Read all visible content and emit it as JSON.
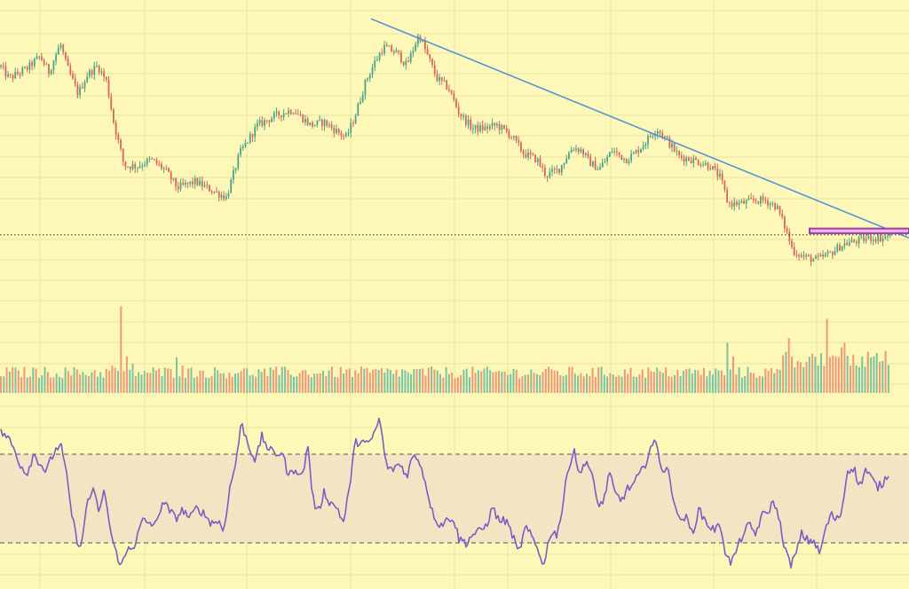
{
  "theme": {
    "background": "#fdf7b8",
    "grid": "#ece5a3",
    "up": "#4aa38a",
    "down": "#d7675a",
    "volume_up": "#7cc3a4",
    "volume_down": "#ee9a7a",
    "trendline": "#4c8fde",
    "rsi_line": "#7d5bc4",
    "rsi_band": "#f2e5c3",
    "zone_border": "#a23ea0",
    "zone_fill": "#e6b7ea"
  },
  "chart_data": [
    {
      "type": "candlestick",
      "title": "",
      "price_path": [
        [
          0,
          104
        ],
        [
          10,
          100
        ],
        [
          30,
          103
        ],
        [
          45,
          107
        ],
        [
          55,
          102
        ],
        [
          68,
          111
        ],
        [
          75,
          104
        ],
        [
          88,
          95
        ],
        [
          98,
          101
        ],
        [
          110,
          104
        ],
        [
          120,
          99
        ],
        [
          128,
          86
        ],
        [
          140,
          72
        ],
        [
          155,
          72
        ],
        [
          170,
          74
        ],
        [
          185,
          71
        ],
        [
          200,
          65
        ],
        [
          220,
          67
        ],
        [
          240,
          64
        ],
        [
          255,
          62
        ],
        [
          270,
          76
        ],
        [
          290,
          85
        ],
        [
          310,
          88
        ],
        [
          330,
          90
        ],
        [
          350,
          85
        ],
        [
          365,
          86
        ],
        [
          380,
          83
        ],
        [
          390,
          81
        ],
        [
          400,
          88
        ],
        [
          412,
          99
        ],
        [
          422,
          105
        ],
        [
          432,
          110
        ],
        [
          448,
          108
        ],
        [
          458,
          104
        ],
        [
          472,
          114
        ],
        [
          482,
          107
        ],
        [
          492,
          100
        ],
        [
          505,
          97
        ],
        [
          517,
          89
        ],
        [
          532,
          84
        ],
        [
          545,
          84
        ],
        [
          560,
          85
        ],
        [
          575,
          82
        ],
        [
          590,
          76
        ],
        [
          605,
          74
        ],
        [
          615,
          69
        ],
        [
          630,
          71
        ],
        [
          645,
          78
        ],
        [
          655,
          77
        ],
        [
          665,
          73
        ],
        [
          675,
          71
        ],
        [
          690,
          77
        ],
        [
          705,
          74
        ],
        [
          715,
          76
        ],
        [
          725,
          79
        ],
        [
          740,
          84
        ],
        [
          752,
          80
        ],
        [
          765,
          75
        ],
        [
          780,
          74
        ],
        [
          800,
          72
        ],
        [
          812,
          68
        ],
        [
          820,
          60
        ],
        [
          835,
          60
        ],
        [
          850,
          61
        ],
        [
          862,
          61
        ],
        [
          875,
          59
        ],
        [
          885,
          52
        ],
        [
          893,
          45
        ],
        [
          905,
          43
        ],
        [
          920,
          42
        ],
        [
          935,
          44
        ],
        [
          950,
          47
        ],
        [
          965,
          48
        ],
        [
          980,
          49
        ],
        [
          995,
          49
        ],
        [
          1003,
          50
        ]
      ],
      "volume_spikes": [
        [
          128,
          3.0
        ],
        [
          137,
          9.5
        ],
        [
          142,
          4.0
        ],
        [
          150,
          3.2
        ],
        [
          173,
          2.8
        ],
        [
          200,
          3.9
        ],
        [
          204,
          3.0
        ],
        [
          268,
          2.2
        ],
        [
          349,
          2.0
        ],
        [
          820,
          5.5
        ],
        [
          825,
          4.0
        ],
        [
          886,
          4.5
        ],
        [
          890,
          6.0
        ],
        [
          897,
          3.5
        ],
        [
          921,
          3.0
        ],
        [
          933,
          8.1
        ],
        [
          941,
          4.0
        ],
        [
          947,
          5.0
        ],
        [
          953,
          5.5
        ],
        [
          962,
          4.2
        ],
        [
          970,
          4.0
        ],
        [
          979,
          4.5
        ],
        [
          986,
          4.0
        ],
        [
          993,
          3.5
        ],
        [
          999,
          4.6
        ]
      ],
      "trendline": [
        [
          418,
          119
        ],
        [
          1024,
          49
        ]
      ],
      "horizontal_level": 50,
      "zone": [
        [
          912,
          52.0
        ],
        [
          1024,
          50.5
        ]
      ],
      "ylim": [
        40,
        125
      ]
    },
    {
      "type": "line",
      "title": "",
      "rsi_path": [
        [
          0,
          80
        ],
        [
          8,
          78
        ],
        [
          15,
          73
        ],
        [
          22,
          66
        ],
        [
          30,
          61
        ],
        [
          38,
          70
        ],
        [
          45,
          66
        ],
        [
          52,
          62
        ],
        [
          60,
          70
        ],
        [
          68,
          75
        ],
        [
          74,
          63
        ],
        [
          80,
          45
        ],
        [
          86,
          32
        ],
        [
          92,
          28
        ],
        [
          98,
          49
        ],
        [
          105,
          53
        ],
        [
          112,
          44
        ],
        [
          118,
          54
        ],
        [
          124,
          36
        ],
        [
          130,
          26
        ],
        [
          137,
          20
        ],
        [
          145,
          28
        ],
        [
          152,
          29
        ],
        [
          160,
          40
        ],
        [
          168,
          39
        ],
        [
          176,
          38
        ],
        [
          183,
          49
        ],
        [
          190,
          45
        ],
        [
          198,
          41
        ],
        [
          206,
          45
        ],
        [
          214,
          41
        ],
        [
          222,
          46
        ],
        [
          230,
          43
        ],
        [
          238,
          39
        ],
        [
          246,
          40
        ],
        [
          252,
          35
        ],
        [
          258,
          53
        ],
        [
          265,
          65
        ],
        [
          272,
          84
        ],
        [
          280,
          74
        ],
        [
          288,
          67
        ],
        [
          295,
          78
        ],
        [
          303,
          72
        ],
        [
          310,
          70
        ],
        [
          318,
          71
        ],
        [
          325,
          60
        ],
        [
          333,
          64
        ],
        [
          340,
          59
        ],
        [
          347,
          74
        ],
        [
          352,
          51
        ],
        [
          358,
          43
        ],
        [
          365,
          53
        ],
        [
          372,
          48
        ],
        [
          380,
          46
        ],
        [
          387,
          39
        ],
        [
          393,
          53
        ],
        [
          400,
          75
        ],
        [
          407,
          76
        ],
        [
          415,
          74
        ],
        [
          422,
          80
        ],
        [
          428,
          86
        ],
        [
          434,
          67
        ],
        [
          440,
          62
        ],
        [
          446,
          65
        ],
        [
          452,
          65
        ],
        [
          458,
          60
        ],
        [
          465,
          69
        ],
        [
          472,
          68
        ],
        [
          480,
          56
        ],
        [
          487,
          44
        ],
        [
          495,
          38
        ],
        [
          503,
          40
        ],
        [
          510,
          42
        ],
        [
          517,
          32
        ],
        [
          525,
          30
        ],
        [
          533,
          34
        ],
        [
          540,
          35
        ],
        [
          548,
          38
        ],
        [
          555,
          46
        ],
        [
          562,
          40
        ],
        [
          570,
          40
        ],
        [
          577,
          34
        ],
        [
          584,
          25
        ],
        [
          592,
          37
        ],
        [
          600,
          32
        ],
        [
          607,
          26
        ],
        [
          613,
          20
        ],
        [
          620,
          35
        ],
        [
          627,
          34
        ],
        [
          633,
          44
        ],
        [
          640,
          64
        ],
        [
          647,
          72
        ],
        [
          653,
          60
        ],
        [
          660,
          68
        ],
        [
          667,
          60
        ],
        [
          673,
          48
        ],
        [
          680,
          48
        ],
        [
          686,
          62
        ],
        [
          693,
          52
        ],
        [
          700,
          49
        ],
        [
          706,
          54
        ],
        [
          713,
          56
        ],
        [
          719,
          60
        ],
        [
          726,
          64
        ],
        [
          732,
          73
        ],
        [
          739,
          75
        ],
        [
          746,
          63
        ],
        [
          752,
          63
        ],
        [
          758,
          52
        ],
        [
          765,
          40
        ],
        [
          772,
          42
        ],
        [
          780,
          34
        ],
        [
          787,
          45
        ],
        [
          793,
          41
        ],
        [
          800,
          37
        ],
        [
          806,
          36
        ],
        [
          812,
          38
        ],
        [
          818,
          24
        ],
        [
          824,
          21
        ],
        [
          830,
          27
        ],
        [
          837,
          34
        ],
        [
          844,
          38
        ],
        [
          851,
          34
        ],
        [
          858,
          42
        ],
        [
          865,
          44
        ],
        [
          872,
          49
        ],
        [
          878,
          40
        ],
        [
          884,
          28
        ],
        [
          890,
          20
        ],
        [
          896,
          24
        ],
        [
          903,
          34
        ],
        [
          910,
          31
        ],
        [
          917,
          31
        ],
        [
          923,
          25
        ],
        [
          930,
          36
        ],
        [
          936,
          43
        ],
        [
          942,
          40
        ],
        [
          948,
          44
        ],
        [
          955,
          63
        ],
        [
          962,
          64
        ],
        [
          968,
          55
        ],
        [
          975,
          63
        ],
        [
          982,
          59
        ],
        [
          988,
          55
        ],
        [
          995,
          57
        ],
        [
          1001,
          62
        ]
      ],
      "upper_band": 70,
      "lower_band": 30,
      "ylim": [
        14,
        90
      ]
    }
  ]
}
